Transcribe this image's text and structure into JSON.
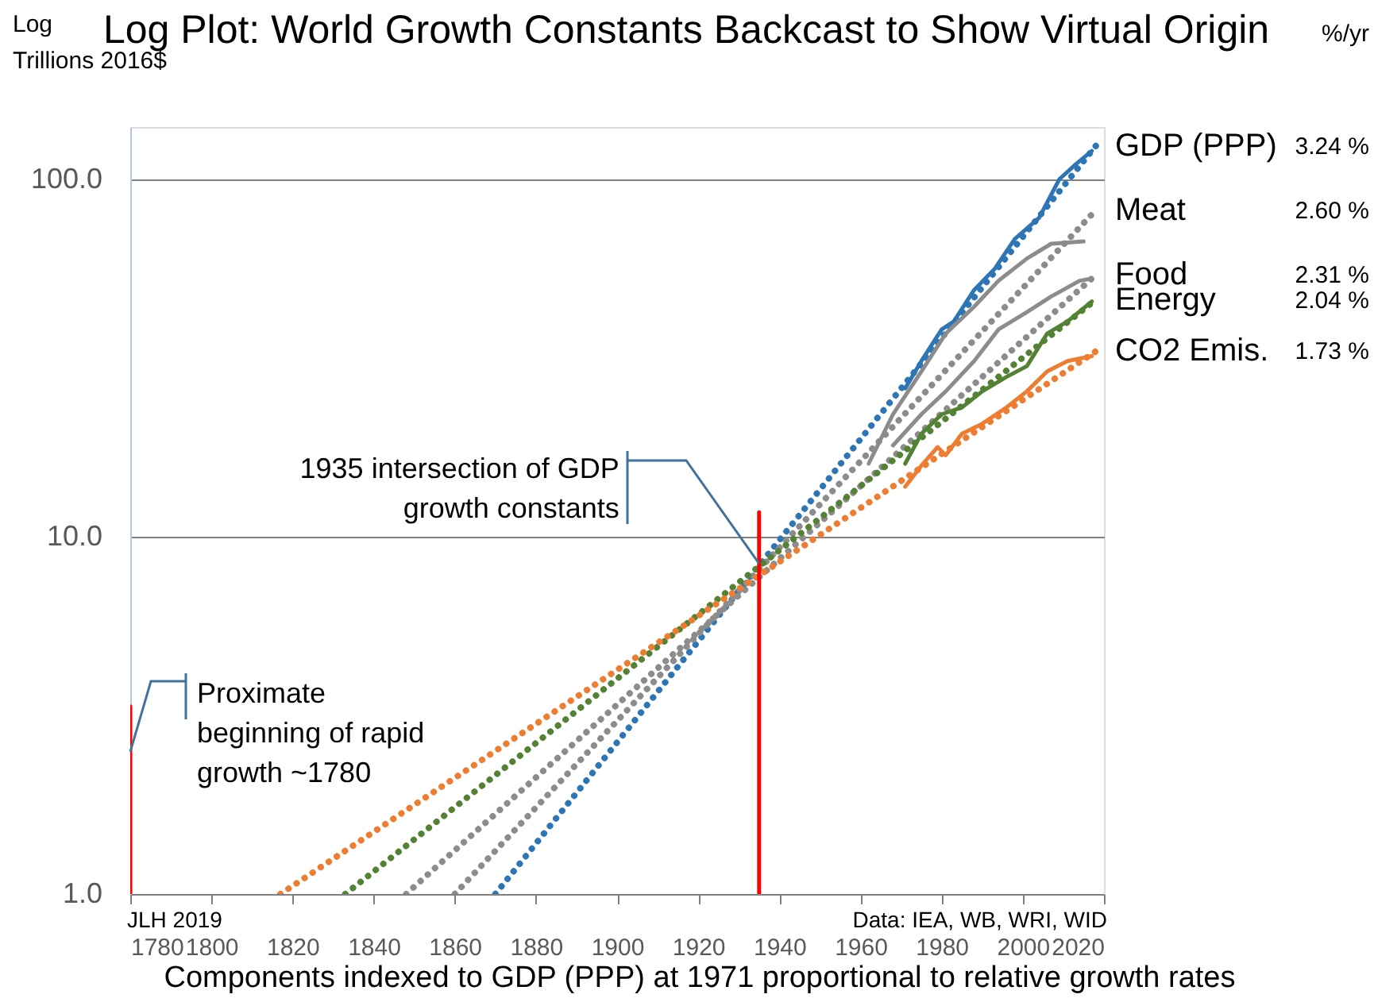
{
  "chart_data": {
    "type": "line",
    "title": "Log Plot: World Growth Constants Backcast to Show Virtual Origin",
    "ylabel": "Log\nTrillions 2016$",
    "xlabel": "Components indexed to GDP (PPP) at 1971 proportional to relative growth rates",
    "log": "y",
    "grid": "y",
    "xlim": [
      1780,
      2020
    ],
    "ylim": [
      1,
      140
    ],
    "yticks": [
      {
        "value": 1,
        "label": "1.0"
      },
      {
        "value": 10,
        "label": "10.0"
      },
      {
        "value": 100,
        "label": "100.0"
      }
    ],
    "xticks": [
      1780,
      1800,
      1820,
      1840,
      1860,
      1880,
      1900,
      1920,
      1940,
      1960,
      1980,
      2000,
      2020
    ],
    "series": [
      {
        "name": "GDP (PPP)",
        "color": "#2e75b6",
        "line_style": "dotted",
        "x": [
          1870,
          2018
        ],
        "values": [
          1.0,
          124
        ]
      },
      {
        "name": "Meat",
        "color": "#8c8c8c",
        "line_style": "dotted",
        "x": [
          1860,
          2018
        ],
        "values": [
          1.0,
          82
        ]
      },
      {
        "name": "Food",
        "color": "#8c8c8c",
        "line_style": "dotted",
        "x": [
          1848,
          2018
        ],
        "values": [
          1.0,
          54
        ]
      },
      {
        "name": "Energy",
        "color": "#548235",
        "line_style": "dotted",
        "x": [
          1833,
          2018
        ],
        "values": [
          1.0,
          46
        ]
      },
      {
        "name": "CO2 Emis.",
        "color": "#ed7d31",
        "line_style": "dotted",
        "x": [
          1817,
          2018
        ],
        "values": [
          1.0,
          33
        ]
      },
      {
        "color": "#2e75b6",
        "line_style": "solid",
        "x": [
          1971,
          1975,
          1980,
          1983,
          1988,
          1993,
          1998,
          2004,
          2009,
          2013,
          2017
        ],
        "values": [
          26,
          31,
          38,
          40,
          49,
          56,
          68,
          78,
          100,
          110,
          120
        ]
      },
      {
        "color": "#8c8c8c",
        "line_style": "solid",
        "x": [
          1962,
          1968,
          1975,
          1981,
          1988,
          1994,
          2001,
          2007,
          2015
        ],
        "values": [
          16,
          22,
          29,
          37,
          44,
          52,
          60,
          66,
          67
        ]
      },
      {
        "color": "#8c8c8c",
        "line_style": "solid",
        "x": [
          1968,
          1975,
          1981,
          1988,
          1994,
          2001,
          2007,
          2014,
          2016
        ],
        "values": [
          18,
          22,
          25.5,
          31,
          38,
          42.5,
          47,
          52,
          52.5
        ]
      },
      {
        "color": "#548235",
        "line_style": "solid",
        "x": [
          1971,
          1975,
          1980,
          1985,
          1990,
          1996,
          2001,
          2006,
          2011,
          2017
        ],
        "values": [
          16,
          19.4,
          22,
          23,
          25.5,
          28,
          30,
          37,
          40,
          45.5
        ]
      },
      {
        "color": "#ed7d31",
        "line_style": "solid",
        "x": [
          1971,
          1975,
          1979,
          1981,
          1985,
          1990,
          1996,
          2001,
          2006,
          2011,
          2017
        ],
        "values": [
          13.8,
          15.8,
          17.8,
          16.9,
          19.4,
          20.7,
          23,
          25.5,
          29,
          31,
          32
        ]
      },
      {
        "color": "#ff0000",
        "line_style": "solid",
        "x": [
          1780,
          1780
        ],
        "values": [
          1.0,
          3.35
        ]
      },
      {
        "color": "#ff0000",
        "line_style": "solid",
        "x": [
          1935,
          1935
        ],
        "values": [
          1.0,
          11.7
        ]
      }
    ],
    "annotations": [
      {
        "text": "1935 intersection of GDP\ngrowth constants",
        "x": 1935,
        "y": 8.4
      },
      {
        "text": "Proximate\nbeginning of rapid\ngrowth ~1780",
        "x": 1780,
        "y": 2.5
      },
      "3.24 %",
      "2.60 %",
      "2.31 %",
      "2.04 %",
      "1.73 %",
      "%/yr",
      "JLH 2019",
      "Data: IEA, WB, WRI, WID"
    ]
  }
}
